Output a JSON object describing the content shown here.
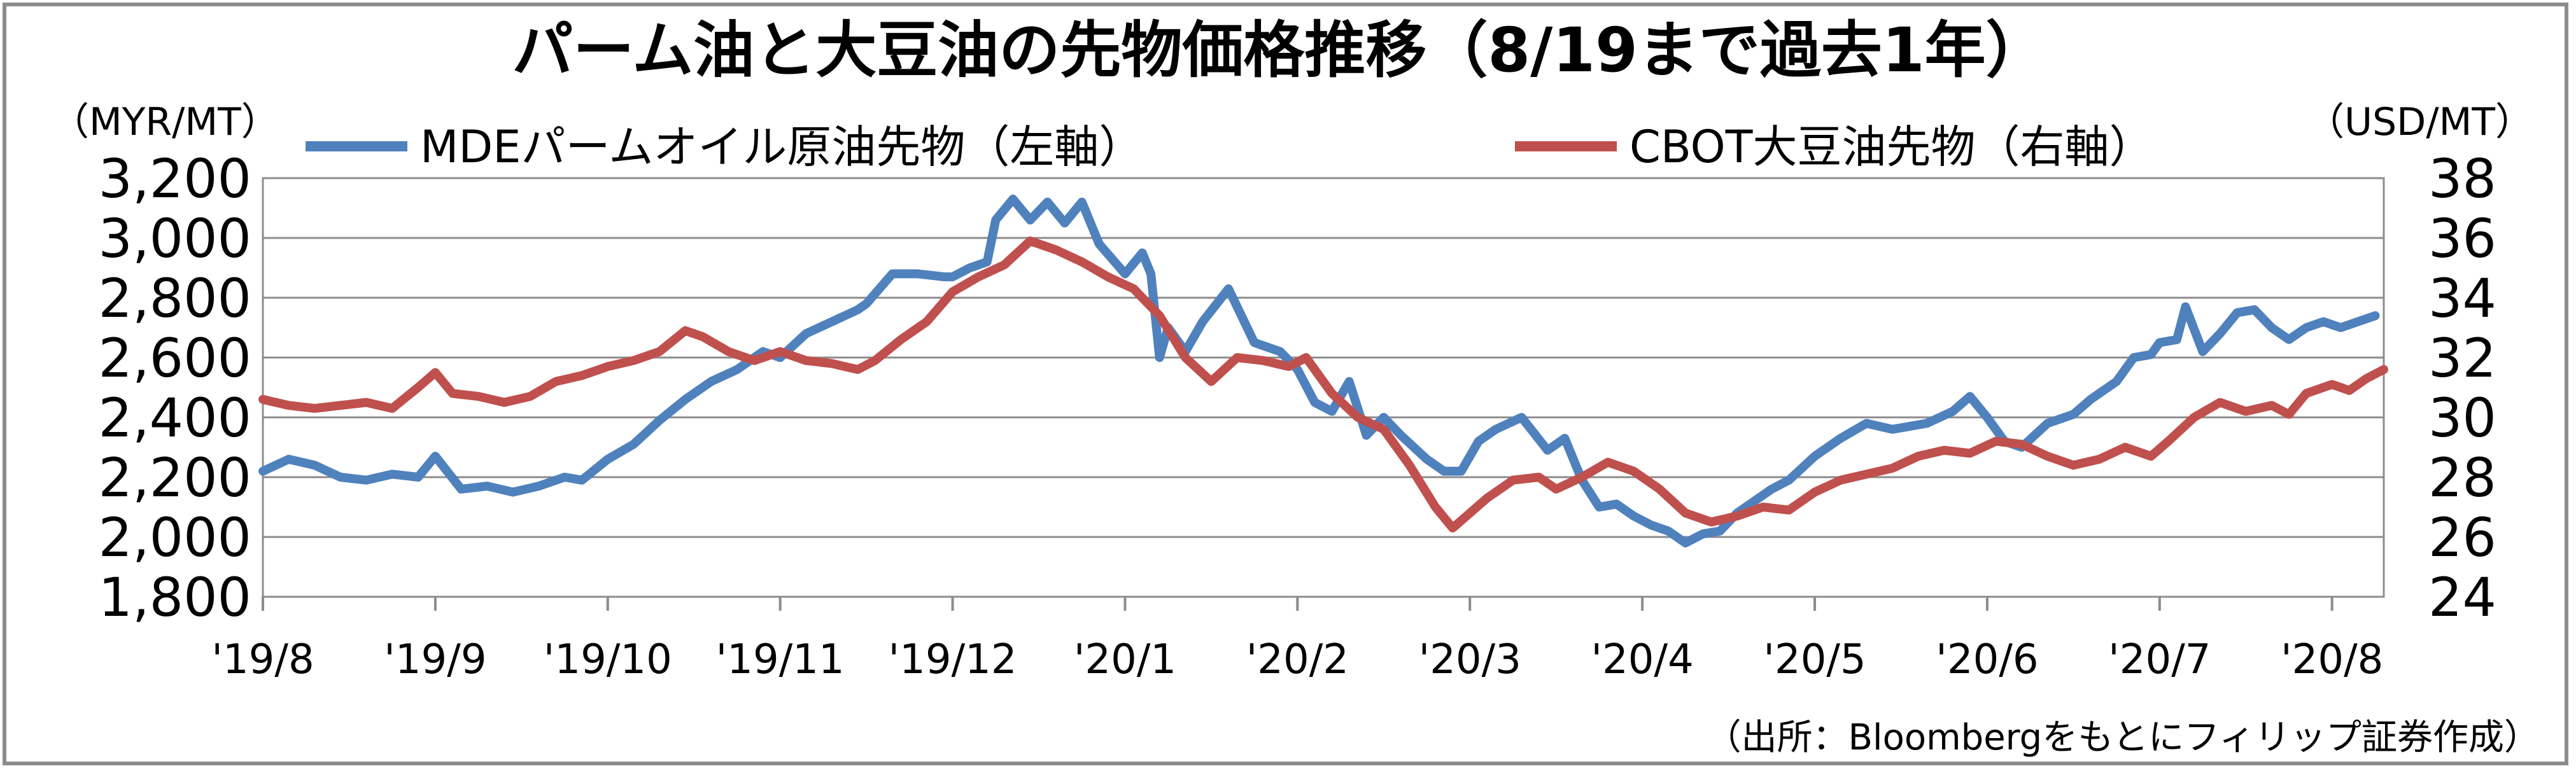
{
  "chart_data": {
    "type": "line",
    "title": "パーム油と大豆油の先物価格推移（8/19まで過去1年）",
    "left_axis": {
      "unit": "（MYR/MT）",
      "range": [
        1800,
        3200
      ],
      "ticks": [
        "1,800",
        "2,000",
        "2,200",
        "2,400",
        "2,600",
        "2,800",
        "3,000",
        "3,200"
      ],
      "tick_values": [
        1800,
        2000,
        2200,
        2400,
        2600,
        2800,
        3000,
        3200
      ]
    },
    "right_axis": {
      "unit": "（USD/MT）",
      "range": [
        24,
        38
      ],
      "ticks": [
        "24",
        "26",
        "28",
        "30",
        "32",
        "34",
        "36",
        "38"
      ],
      "tick_values": [
        24,
        26,
        28,
        30,
        32,
        34,
        36,
        38
      ]
    },
    "x_axis": {
      "range": [
        0,
        12.3
      ],
      "ticks": [
        "'19/8",
        "'19/9",
        "'19/10",
        "'19/11",
        "'19/12",
        "'20/1",
        "'20/2",
        "'20/3",
        "'20/4",
        "'20/5",
        "'20/6",
        "'20/7",
        "'20/8"
      ],
      "tick_positions": [
        0,
        1,
        2,
        3,
        4,
        5,
        6,
        7,
        8,
        9,
        10,
        11,
        12
      ]
    },
    "grid": "horizontal",
    "legend_position": "top",
    "series": [
      {
        "name": "MDEパームオイル原油先物（左軸）",
        "axis": "left",
        "color": "#4f81bd",
        "x": [
          0,
          0.15,
          0.3,
          0.45,
          0.6,
          0.75,
          0.9,
          1.0,
          1.15,
          1.3,
          1.45,
          1.6,
          1.75,
          1.85,
          2.0,
          2.15,
          2.3,
          2.45,
          2.6,
          2.75,
          2.9,
          3.0,
          3.15,
          3.3,
          3.45,
          3.5,
          3.65,
          3.8,
          3.95,
          4.0,
          4.1,
          4.2,
          4.25,
          4.35,
          4.45,
          4.55,
          4.65,
          4.75,
          4.85,
          5.0,
          5.1,
          5.15,
          5.2,
          5.25,
          5.35,
          5.45,
          5.6,
          5.75,
          5.9,
          6.0,
          6.1,
          6.2,
          6.3,
          6.4,
          6.5,
          6.6,
          6.75,
          6.85,
          6.95,
          7.05,
          7.15,
          7.3,
          7.45,
          7.55,
          7.65,
          7.75,
          7.85,
          7.95,
          8.05,
          8.15,
          8.25,
          8.35,
          8.45,
          8.55,
          8.65,
          8.75,
          8.85,
          9.0,
          9.15,
          9.3,
          9.45,
          9.55,
          9.65,
          9.8,
          9.9,
          10.0,
          10.1,
          10.2,
          10.35,
          10.5,
          10.6,
          10.75,
          10.85,
          10.95,
          11.0,
          11.1,
          11.15,
          11.25,
          11.35,
          11.45,
          11.55,
          11.65,
          11.75,
          11.85,
          11.95,
          12.05,
          12.15,
          12.25
        ],
        "values": [
          2220,
          2260,
          2240,
          2200,
          2190,
          2210,
          2200,
          2270,
          2160,
          2170,
          2150,
          2170,
          2200,
          2190,
          2260,
          2310,
          2390,
          2460,
          2520,
          2560,
          2620,
          2600,
          2680,
          2720,
          2760,
          2780,
          2880,
          2880,
          2870,
          2870,
          2900,
          2920,
          3060,
          3130,
          3060,
          3120,
          3050,
          3120,
          2980,
          2880,
          2950,
          2880,
          2600,
          2700,
          2620,
          2720,
          2830,
          2650,
          2620,
          2560,
          2450,
          2420,
          2520,
          2340,
          2400,
          2340,
          2260,
          2220,
          2220,
          2320,
          2360,
          2400,
          2290,
          2330,
          2190,
          2100,
          2110,
          2070,
          2040,
          2020,
          1980,
          2010,
          2020,
          2080,
          2120,
          2160,
          2190,
          2270,
          2330,
          2380,
          2360,
          2370,
          2380,
          2420,
          2470,
          2400,
          2320,
          2300,
          2380,
          2410,
          2460,
          2520,
          2600,
          2610,
          2650,
          2660,
          2770,
          2620,
          2680,
          2750,
          2760,
          2700,
          2660,
          2700,
          2720,
          2700,
          2720,
          2740
        ]
      },
      {
        "name": "CBOT大豆油先物（右軸）",
        "axis": "right",
        "color": "#c0504d",
        "x": [
          0,
          0.15,
          0.3,
          0.45,
          0.6,
          0.75,
          0.9,
          1.0,
          1.1,
          1.25,
          1.4,
          1.55,
          1.7,
          1.85,
          2.0,
          2.15,
          2.3,
          2.45,
          2.55,
          2.7,
          2.85,
          3.0,
          3.15,
          3.3,
          3.45,
          3.55,
          3.7,
          3.85,
          4.0,
          4.15,
          4.3,
          4.45,
          4.6,
          4.75,
          4.9,
          5.05,
          5.2,
          5.35,
          5.5,
          5.65,
          5.8,
          5.95,
          6.05,
          6.2,
          6.35,
          6.5,
          6.65,
          6.8,
          6.9,
          7.0,
          7.1,
          7.25,
          7.4,
          7.5,
          7.65,
          7.8,
          7.95,
          8.1,
          8.25,
          8.4,
          8.55,
          8.7,
          8.85,
          9.0,
          9.15,
          9.3,
          9.45,
          9.6,
          9.75,
          9.9,
          10.05,
          10.2,
          10.35,
          10.5,
          10.65,
          10.8,
          10.95,
          11.05,
          11.2,
          11.35,
          11.5,
          11.65,
          11.75,
          11.85,
          12.0,
          12.1,
          12.2,
          12.3
        ],
        "values": [
          30.6,
          30.4,
          30.3,
          30.4,
          30.5,
          30.3,
          31.0,
          31.5,
          30.8,
          30.7,
          30.5,
          30.7,
          31.2,
          31.4,
          31.7,
          31.9,
          32.2,
          32.9,
          32.7,
          32.2,
          31.9,
          32.2,
          31.9,
          31.8,
          31.6,
          31.9,
          32.6,
          33.2,
          34.2,
          34.7,
          35.1,
          35.9,
          35.6,
          35.2,
          34.7,
          34.3,
          33.4,
          32.0,
          31.2,
          32.0,
          31.9,
          31.7,
          32.0,
          30.8,
          30.0,
          29.6,
          28.4,
          27.0,
          26.3,
          26.8,
          27.3,
          27.9,
          28.0,
          27.6,
          28.0,
          28.5,
          28.2,
          27.6,
          26.8,
          26.5,
          26.7,
          27.0,
          26.9,
          27.5,
          27.9,
          28.1,
          28.3,
          28.7,
          28.9,
          28.8,
          29.2,
          29.1,
          28.7,
          28.4,
          28.6,
          29.0,
          28.7,
          29.2,
          30.0,
          30.5,
          30.2,
          30.4,
          30.1,
          30.8,
          31.1,
          30.9,
          31.3,
          31.6
        ]
      }
    ],
    "source": "（出所：Bloombergをもとにフィリップ証券作成）"
  }
}
